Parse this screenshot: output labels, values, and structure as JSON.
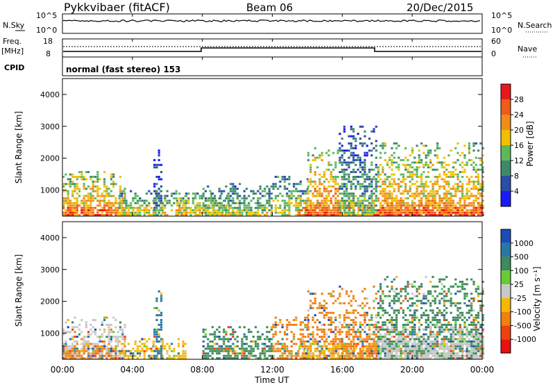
{
  "header": {
    "station": "Pykkvibaer (fitACF)",
    "beam": "Beam 06",
    "date": "20/Dec/2015"
  },
  "nsky_panel": {
    "left_label": "N.Sky",
    "left_ticks": [
      "10^5",
      "10^0"
    ],
    "right_ticks": [
      "10^5",
      "10^0"
    ],
    "right_label": "N.Search"
  },
  "freq_panel": {
    "left_label_1": "Freq.",
    "left_label_2": "[MHz]",
    "left_ticks": [
      "18",
      "8"
    ],
    "right_ticks": [
      "60",
      "0"
    ],
    "right_label": "Nave"
  },
  "cpid_panel": {
    "label": "CPID",
    "text": "normal (fast stereo) 153"
  },
  "x_axis": {
    "ticks": [
      "00:00",
      "04:00",
      "08:00",
      "12:00",
      "16:00",
      "20:00",
      "00:00"
    ],
    "label": "Time UT"
  },
  "power_panel": {
    "ylabel": "Slant Range [km]",
    "y_ticks": [
      "1000",
      "2000",
      "3000",
      "4000"
    ],
    "cbar_label": "Power [dB]",
    "cbar_ticks": [
      "4",
      "8",
      "12",
      "16",
      "20",
      "24",
      "28"
    ],
    "cbar_colors": [
      "#1a1aff",
      "#2a4da8",
      "#3d8a6a",
      "#5cb85c",
      "#f0c000",
      "#f08c1a",
      "#f25a1a",
      "#e8181a"
    ]
  },
  "velocity_panel": {
    "ylabel": "Slant Range [km]",
    "y_ticks": [
      "1000",
      "2000",
      "3000",
      "4000"
    ],
    "cbar_label": "Velocity [m s⁻¹]",
    "cbar_ticks": [
      "1000",
      "500",
      "100",
      "25",
      "-25",
      "-100",
      "-500",
      "-1000"
    ],
    "cbar_colors": [
      "#1a4db8",
      "#2a78a0",
      "#3d8a5a",
      "#66cc33",
      "#c8c8c8",
      "#f5b800",
      "#f08010",
      "#f04010",
      "#e81010"
    ]
  },
  "chart_data": [
    {
      "type": "heatmap",
      "quantity": "Power",
      "unit": "dB",
      "x_range_hours": [
        0,
        24
      ],
      "y_range_km": [
        180,
        4500
      ],
      "colorbar_range": [
        0,
        32
      ],
      "regions": [
        {
          "t0": 0.0,
          "t1": 3.6,
          "r_top": 1600,
          "level": 22
        },
        {
          "t0": 0.0,
          "t1": 3.0,
          "r_top": 700,
          "level": 28
        },
        {
          "t0": 3.2,
          "t1": 7.0,
          "r_top": 1000,
          "level": 18
        },
        {
          "t0": 5.2,
          "t1": 5.6,
          "r_top": 2300,
          "level": 10
        },
        {
          "t0": 6.5,
          "t1": 9.5,
          "r_top": 900,
          "level": 20
        },
        {
          "t0": 8.0,
          "t1": 12.0,
          "r_top": 1200,
          "level": 16
        },
        {
          "t0": 12.0,
          "t1": 14.0,
          "r_top": 1400,
          "level": 18
        },
        {
          "t0": 14.0,
          "t1": 15.8,
          "r_top": 2300,
          "level": 24
        },
        {
          "t0": 13.5,
          "t1": 18.0,
          "r_top": 700,
          "level": 28
        },
        {
          "t0": 15.8,
          "t1": 18.0,
          "r_top": 3000,
          "level": 14
        },
        {
          "t0": 18.0,
          "t1": 24.0,
          "r_top": 2500,
          "level": 22
        },
        {
          "t0": 18.0,
          "t1": 24.0,
          "r_top": 800,
          "level": 28
        }
      ]
    },
    {
      "type": "heatmap",
      "quantity": "Velocity",
      "unit": "m s-1",
      "x_range_hours": [
        0,
        24
      ],
      "y_range_km": [
        180,
        4500
      ],
      "colorbar_levels": [
        1000,
        500,
        100,
        25,
        -25,
        -100,
        -500,
        -1000
      ],
      "regions": [
        {
          "t0": 0.0,
          "t1": 3.6,
          "r_top": 1500,
          "level": -25
        },
        {
          "t0": 0.0,
          "t1": 3.0,
          "r_top": 700,
          "level": -500
        },
        {
          "t0": 3.2,
          "t1": 7.0,
          "r_top": 800,
          "level": -100
        },
        {
          "t0": 5.2,
          "t1": 5.6,
          "r_top": 2300,
          "level": 500
        },
        {
          "t0": 8.0,
          "t1": 12.0,
          "r_top": 1200,
          "level": 100
        },
        {
          "t0": 12.0,
          "t1": 14.0,
          "r_top": 1500,
          "level": -500
        },
        {
          "t0": 14.0,
          "t1": 15.8,
          "r_top": 2300,
          "level": -500
        },
        {
          "t0": 13.5,
          "t1": 18.0,
          "r_top": 700,
          "level": -100
        },
        {
          "t0": 15.8,
          "t1": 18.0,
          "r_top": 2500,
          "level": -500
        },
        {
          "t0": 18.0,
          "t1": 24.0,
          "r_top": 2800,
          "level": 100
        },
        {
          "t0": 18.0,
          "t1": 24.0,
          "r_top": 1200,
          "level": -25
        }
      ]
    }
  ]
}
